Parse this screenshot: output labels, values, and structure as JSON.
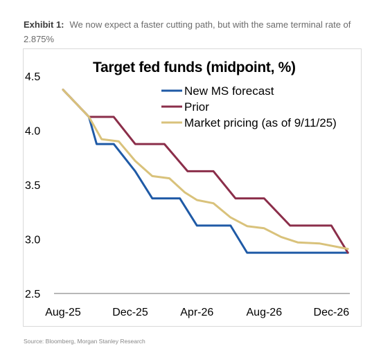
{
  "header": {
    "exhibit_label": "Exhibit 1:",
    "exhibit_text": "We now expect a faster cutting path, but with the same terminal rate of 2.875%"
  },
  "source": "Source: Bloomberg, Morgan Stanley Research",
  "chart_data": {
    "type": "line",
    "title": "Target fed funds (midpoint, %)",
    "xlabel": "",
    "ylabel": "",
    "x_ticks": [
      "Aug-25",
      "Dec-25",
      "Apr-26",
      "Aug-26",
      "Dec-26"
    ],
    "y_ticks": [
      "2.5",
      "3.0",
      "3.5",
      "4.0",
      "4.5"
    ],
    "ylim": [
      2.5,
      4.5
    ],
    "xlim": [
      "Aug-25",
      "Jan-27"
    ],
    "grid": false,
    "legend": "top",
    "series": [
      {
        "name": "New MS forecast",
        "color": "#1f5aa6",
        "points": [
          [
            "2025-08-01",
            4.375
          ],
          [
            "2025-09-17",
            4.125
          ],
          [
            "2025-10-01",
            3.875
          ],
          [
            "2025-11-01",
            3.875
          ],
          [
            "2025-12-10",
            3.625
          ],
          [
            "2026-01-10",
            3.375
          ],
          [
            "2026-03-01",
            3.375
          ],
          [
            "2026-04-01",
            3.125
          ],
          [
            "2026-06-01",
            3.125
          ],
          [
            "2026-07-01",
            2.875
          ],
          [
            "2026-12-31",
            2.875
          ]
        ]
      },
      {
        "name": "Prior",
        "color": "#8b2e4a",
        "points": [
          [
            "2025-08-01",
            4.375
          ],
          [
            "2025-09-17",
            4.125
          ],
          [
            "2025-11-01",
            4.125
          ],
          [
            "2025-12-10",
            3.875
          ],
          [
            "2026-02-01",
            3.875
          ],
          [
            "2026-03-15",
            3.625
          ],
          [
            "2026-05-01",
            3.625
          ],
          [
            "2026-06-10",
            3.375
          ],
          [
            "2026-08-01",
            3.375
          ],
          [
            "2026-09-17",
            3.125
          ],
          [
            "2026-12-01",
            3.125
          ],
          [
            "2026-12-31",
            2.875
          ]
        ]
      },
      {
        "name": "Market pricing (as of 9/11/25)",
        "color": "#d9c27b",
        "points": [
          [
            "2025-08-01",
            4.375
          ],
          [
            "2025-09-17",
            4.125
          ],
          [
            "2025-10-10",
            3.92
          ],
          [
            "2025-11-10",
            3.9
          ],
          [
            "2025-12-10",
            3.72
          ],
          [
            "2026-01-10",
            3.58
          ],
          [
            "2026-02-10",
            3.56
          ],
          [
            "2026-03-10",
            3.43
          ],
          [
            "2026-04-01",
            3.36
          ],
          [
            "2026-05-01",
            3.33
          ],
          [
            "2026-06-01",
            3.2
          ],
          [
            "2026-07-01",
            3.12
          ],
          [
            "2026-08-01",
            3.1
          ],
          [
            "2026-09-01",
            3.02
          ],
          [
            "2026-10-01",
            2.97
          ],
          [
            "2026-11-10",
            2.96
          ],
          [
            "2026-12-31",
            2.91
          ]
        ]
      }
    ]
  }
}
